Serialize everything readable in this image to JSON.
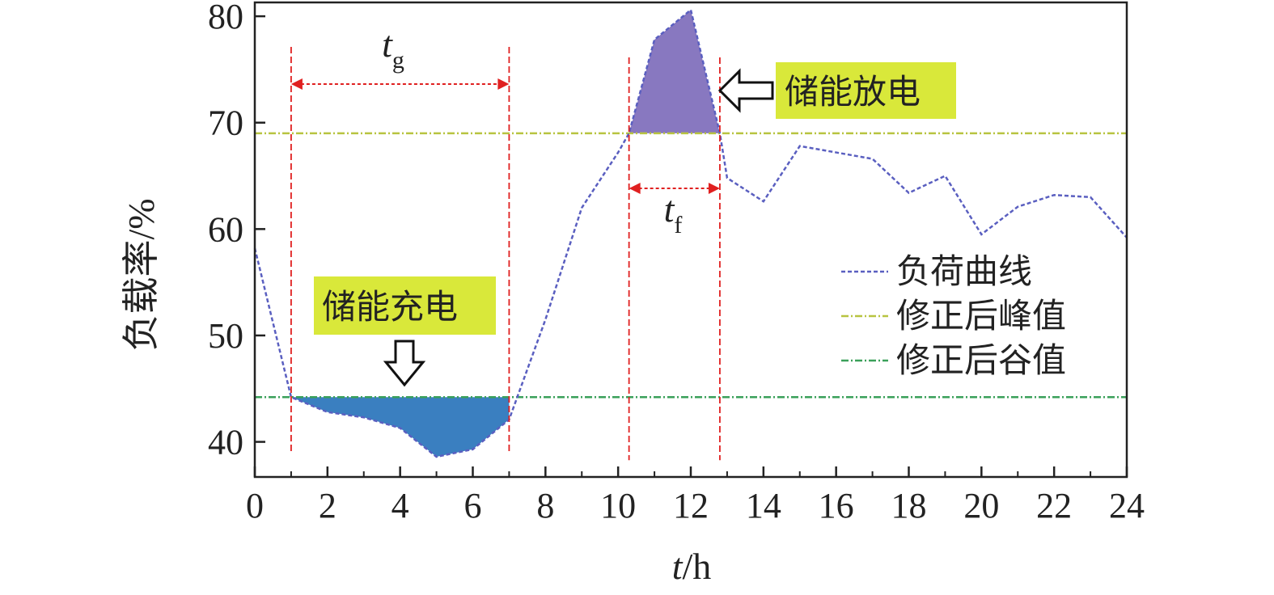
{
  "chart_data": {
    "type": "line",
    "xlabel": {
      "var": "t",
      "unit": "/h"
    },
    "ylabel": "负载率/%",
    "xlim": [
      0,
      24
    ],
    "ylim": [
      36.7,
      81.3
    ],
    "x_ticks": [
      0,
      2,
      4,
      6,
      8,
      10,
      12,
      14,
      16,
      18,
      20,
      22,
      24
    ],
    "y_ticks": [
      40,
      50,
      60,
      70,
      80
    ],
    "series": [
      {
        "name": "负荷曲线",
        "color": "#5a5fc0",
        "style": "dashed",
        "x": [
          0,
          1,
          2,
          3,
          4,
          5,
          6,
          7,
          8,
          9,
          10,
          10.3,
          11,
          12,
          12.8,
          13,
          14,
          15,
          16,
          17,
          18,
          19,
          20,
          21,
          22,
          23,
          24
        ],
        "y": [
          58.2,
          44.2,
          42.8,
          42.3,
          41.3,
          38.6,
          39.3,
          42.1,
          51.5,
          62,
          67.2,
          69,
          77.8,
          80.6,
          69,
          64.8,
          62.6,
          67.8,
          67.2,
          66.6,
          63.4,
          65,
          59.5,
          62.1,
          63.2,
          63,
          59.2
        ]
      },
      {
        "name": "修正后峰值",
        "color": "#b8c440",
        "style": "dash-dot",
        "value": 69
      },
      {
        "name": "修正后谷值",
        "color": "#3aa05a",
        "style": "dash-dot",
        "value": 44.2
      }
    ],
    "shaded_regions": [
      {
        "label": "储能充电",
        "x_start": 1,
        "x_end": 7,
        "fill": "#3a7fc0"
      },
      {
        "label": "储能放电",
        "x_start": 10.3,
        "x_end": 12.8,
        "fill": "#8878c0"
      }
    ],
    "markers": {
      "vertical_lines_x": [
        1,
        7,
        10.3,
        12.8
      ],
      "tg": {
        "var": "t",
        "sub": "g",
        "x_start": 1,
        "x_end": 7
      },
      "tf": {
        "var": "t",
        "sub": "f",
        "x_start": 10.3,
        "x_end": 12.8
      }
    },
    "legend": {
      "position": "right"
    },
    "grid": false,
    "label_bg_color": "#d9e83a",
    "marker_color": "#e02020"
  }
}
